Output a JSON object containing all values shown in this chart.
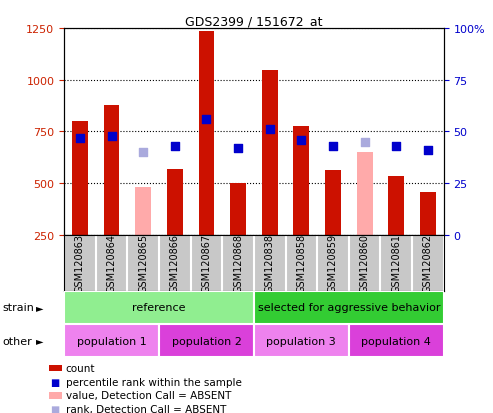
{
  "title": "GDS2399 / 151672_at",
  "samples": [
    "GSM120863",
    "GSM120864",
    "GSM120865",
    "GSM120866",
    "GSM120867",
    "GSM120868",
    "GSM120838",
    "GSM120858",
    "GSM120859",
    "GSM120860",
    "GSM120861",
    "GSM120862"
  ],
  "count_values": [
    800,
    880,
    null,
    570,
    1235,
    500,
    1045,
    775,
    565,
    null,
    535,
    460
  ],
  "count_absent_values": [
    null,
    null,
    480,
    null,
    null,
    null,
    null,
    null,
    null,
    650,
    null,
    null
  ],
  "percentile_values": [
    47,
    48,
    null,
    43,
    56,
    42,
    51,
    46,
    43,
    null,
    43,
    41
  ],
  "percentile_absent_values": [
    null,
    null,
    40,
    null,
    null,
    null,
    null,
    null,
    null,
    45,
    null,
    null
  ],
  "ylim_left": [
    250,
    1250
  ],
  "ylim_right": [
    0,
    100
  ],
  "yticks_left": [
    250,
    500,
    750,
    1000,
    1250
  ],
  "yticks_right": [
    0,
    25,
    50,
    75,
    100
  ],
  "ytick_labels_right": [
    "0",
    "25",
    "50",
    "75",
    "100%"
  ],
  "strain_groups": [
    {
      "label": "reference",
      "start": 0,
      "end": 6,
      "color": "#90ee90"
    },
    {
      "label": "selected for aggressive behavior",
      "start": 6,
      "end": 12,
      "color": "#33cc33"
    }
  ],
  "other_groups": [
    {
      "label": "population 1",
      "start": 0,
      "end": 3,
      "color": "#ee82ee"
    },
    {
      "label": "population 2",
      "start": 3,
      "end": 6,
      "color": "#da40da"
    },
    {
      "label": "population 3",
      "start": 6,
      "end": 9,
      "color": "#ee82ee"
    },
    {
      "label": "population 4",
      "start": 9,
      "end": 12,
      "color": "#da40da"
    }
  ],
  "bar_color_present": "#cc1100",
  "bar_color_absent": "#ffaaaa",
  "dot_color_present": "#0000cc",
  "dot_color_absent": "#aaaadd",
  "bar_width": 0.5,
  "dot_size": 28,
  "grid_linestyle": ":",
  "grid_linewidth": 0.8,
  "tick_label_color_left": "#cc2200",
  "tick_label_color_right": "#0000cc",
  "xtick_area_color": "#c8c8c8",
  "strain_label": "strain",
  "other_label": "other",
  "legend_items": [
    {
      "label": "count",
      "color": "#cc1100",
      "shape": "rect"
    },
    {
      "label": "percentile rank within the sample",
      "color": "#0000cc",
      "shape": "square"
    },
    {
      "label": "value, Detection Call = ABSENT",
      "color": "#ffaaaa",
      "shape": "rect"
    },
    {
      "label": "rank, Detection Call = ABSENT",
      "color": "#aaaadd",
      "shape": "square"
    }
  ]
}
